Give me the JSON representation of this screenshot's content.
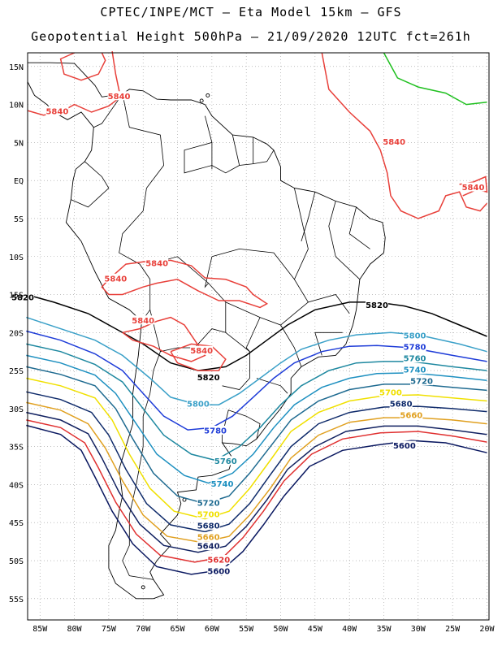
{
  "header": {
    "line1": "CPTEC/INPE/MCT –  Eta Model 15km – GFS",
    "line2": "Geopotential Height 500hPa – 21/09/2020 12UTC fct=261h"
  },
  "axes": {
    "lat_labels": [
      "15N",
      "10N",
      "5N",
      "EQ",
      "5S",
      "10S",
      "15S",
      "20S",
      "25S",
      "30S",
      "35S",
      "40S",
      "45S",
      "50S",
      "55S"
    ],
    "lon_labels": [
      "85W",
      "80W",
      "75W",
      "70W",
      "65W",
      "60W",
      "55W",
      "50W",
      "45W",
      "40W",
      "35W",
      "30W",
      "25W",
      "20W"
    ]
  },
  "colors": {
    "5840": "#e8403a",
    "5820": "#000000",
    "5800": "#3aa0c8",
    "5780": "#1e3cd8",
    "5760": "#1e88a0",
    "5740": "#1e90c0",
    "5720": "#1e6a90",
    "5700": "#f0e000",
    "5680": "#0e2a6a",
    "5660": "#e0a020",
    "5640": "#102060",
    "5620": "#e03030",
    "5600": "#0a1860",
    "green": "#20c020"
  },
  "contour_labels": [
    {
      "text": "5840",
      "level": "5840",
      "lon": -73.5,
      "lat": 11
    },
    {
      "text": "5840",
      "level": "5840",
      "lon": -82.5,
      "lat": 9
    },
    {
      "text": "5840",
      "level": "5840",
      "lon": -33.5,
      "lat": 5
    },
    {
      "text": "5840",
      "level": "5840",
      "lon": -22,
      "lat": -1
    },
    {
      "text": "5840",
      "level": "5840",
      "lon": -68,
      "lat": -11
    },
    {
      "text": "5840",
      "level": "5840",
      "lon": -74,
      "lat": -13
    },
    {
      "text": "5840",
      "level": "5840",
      "lon": -70,
      "lat": -18.5
    },
    {
      "text": "5840",
      "level": "5840",
      "lon": -61.5,
      "lat": -22.5
    },
    {
      "text": "5820",
      "level": "5820",
      "lon": -87.5,
      "lat": -15.5
    },
    {
      "text": "5820",
      "level": "5820",
      "lon": -36,
      "lat": -16.5
    },
    {
      "text": "5820",
      "level": "5820",
      "lon": -60.5,
      "lat": -26
    },
    {
      "text": "5800",
      "level": "5800",
      "lon": -62,
      "lat": -29.5
    },
    {
      "text": "5800",
      "level": "5800",
      "lon": -30.5,
      "lat": -20.5
    },
    {
      "text": "5780",
      "level": "5780",
      "lon": -59.5,
      "lat": -33
    },
    {
      "text": "5780",
      "level": "5780",
      "lon": -30.5,
      "lat": -22
    },
    {
      "text": "5760",
      "level": "5760",
      "lon": -58,
      "lat": -37
    },
    {
      "text": "5760",
      "level": "5760",
      "lon": -30.5,
      "lat": -23.5
    },
    {
      "text": "5740",
      "level": "5740",
      "lon": -58.5,
      "lat": -40
    },
    {
      "text": "5740",
      "level": "5740",
      "lon": -30.5,
      "lat": -25
    },
    {
      "text": "5720",
      "level": "5720",
      "lon": -60.5,
      "lat": -42.5
    },
    {
      "text": "5720",
      "level": "5720",
      "lon": -29.5,
      "lat": -26.5
    },
    {
      "text": "5700",
      "level": "5700",
      "lon": -60.5,
      "lat": -44
    },
    {
      "text": "5700",
      "level": "5700",
      "lon": -34,
      "lat": -28
    },
    {
      "text": "5680",
      "level": "5680",
      "lon": -60.5,
      "lat": -45.5
    },
    {
      "text": "5680",
      "level": "5680",
      "lon": -32.5,
      "lat": -29.5
    },
    {
      "text": "5660",
      "level": "5660",
      "lon": -60.5,
      "lat": -47
    },
    {
      "text": "5660",
      "level": "5660",
      "lon": -31,
      "lat": -31
    },
    {
      "text": "5640",
      "level": "5640",
      "lon": -60.5,
      "lat": -48.2
    },
    {
      "text": "5620",
      "level": "5620",
      "lon": -59,
      "lat": -50
    },
    {
      "text": "5600",
      "level": "5600",
      "lon": -59,
      "lat": -51.5
    },
    {
      "text": "5600",
      "level": "5600",
      "lon": -32,
      "lat": -35
    }
  ]
}
